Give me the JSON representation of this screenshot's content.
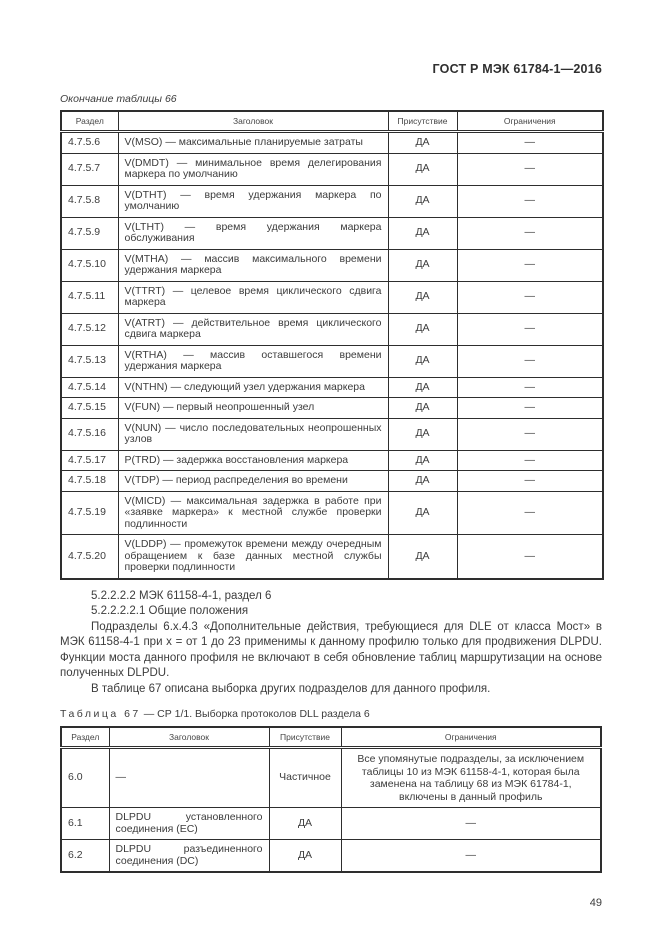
{
  "page": {
    "header": "ГОСТ Р МЭК 61784-1—2016",
    "page_number": "49"
  },
  "table66": {
    "continuation_label": "Окончание таблицы 66",
    "headers": [
      "Раздел",
      "Заголовок",
      "Присутствие",
      "Ограничения"
    ],
    "rows": [
      {
        "section": "4.7.5.6",
        "title": "V(MSO) — максимальные планируемые затраты",
        "presence": "ДА",
        "restrictions": "—"
      },
      {
        "section": "4.7.5.7",
        "title": "V(DMDT) — минимальное время делегирования маркера по умолчанию",
        "presence": "ДА",
        "restrictions": "—"
      },
      {
        "section": "4.7.5.8",
        "title": "V(DTHT) — время удержания маркера по умолчанию",
        "presence": "ДА",
        "restrictions": "—"
      },
      {
        "section": "4.7.5.9",
        "title": "V(LTHT) — время удержания маркера обслуживания",
        "presence": "ДА",
        "restrictions": "—"
      },
      {
        "section": "4.7.5.10",
        "title": "V(MTHA) — массив максимального времени удержания маркера",
        "presence": "ДА",
        "restrictions": "—"
      },
      {
        "section": "4.7.5.11",
        "title": "V(TTRT) — целевое время циклического сдвига маркера",
        "presence": "ДА",
        "restrictions": "—"
      },
      {
        "section": "4.7.5.12",
        "title": "V(ATRT) — действительное время циклического сдвига маркера",
        "presence": "ДА",
        "restrictions": "—"
      },
      {
        "section": "4.7.5.13",
        "title": "V(RTHA) — массив оставшегося времени удержания маркера",
        "presence": "ДА",
        "restrictions": "—"
      },
      {
        "section": "4.7.5.14",
        "title": "V(NTHN) — следующий узел удержания маркера",
        "presence": "ДА",
        "restrictions": "—"
      },
      {
        "section": "4.7.5.15",
        "title": "V(FUN) — первый неопрошенный узел",
        "presence": "ДА",
        "restrictions": "—"
      },
      {
        "section": "4.7.5.16",
        "title": "V(NUN) — число последовательных неопрошенных узлов",
        "presence": "ДА",
        "restrictions": "—"
      },
      {
        "section": "4.7.5.17",
        "title": "P(TRD) — задержка восстановления маркера",
        "presence": "ДА",
        "restrictions": "—"
      },
      {
        "section": "4.7.5.18",
        "title": "V(TDP) — период распределения во времени",
        "presence": "ДА",
        "restrictions": "—"
      },
      {
        "section": "4.7.5.19",
        "title": "V(MICD) — максимальная задержка в работе при «заявке маркера» к местной службе проверки подлинности",
        "presence": "ДА",
        "restrictions": "—"
      },
      {
        "section": "4.7.5.20",
        "title": "V(LDDP) — промежуток времени между очередным обращением к базе данных местной службы проверки подлинности",
        "presence": "ДА",
        "restrictions": "—"
      }
    ]
  },
  "body": {
    "heading1": "5.2.2.2.2 МЭК 61158-4-1, раздел 6",
    "heading2": "5.2.2.2.2.1 Общие положения",
    "paragraph1": "Подразделы 6.x.4.3 «Дополнительные действия, требующиеся для DLE от класса Мост» в МЭК 61158-4-1 при x = от 1 до 23 применимы к данному профилю только для продвижения DLPDU. Функции моста данного профиля не включают в себя обновление таблиц маршрутизации на основе полученных DLPDU.",
    "paragraph2": "В таблице 67 описана выборка других подразделов для данного профиля."
  },
  "table67": {
    "caption_label": "Таблица 67",
    "caption_rest": " — СР 1/1. Выборка протоколов DLL раздела 6",
    "headers": [
      "Раздел",
      "Заголовок",
      "Присутствие",
      "Ограничения"
    ],
    "rows": [
      {
        "section": "6.0",
        "title": "—",
        "presence": "Частичное",
        "restrictions": "Все упомянутые подразделы, за исключением таблицы 10 из МЭК 61158-4-1, которая была заменена на таблицу 68 из МЭК 61784-1, включены в данный профиль"
      },
      {
        "section": "6.1",
        "title": "DLPDU установленного соединения (EC)",
        "presence": "ДА",
        "restrictions": "—"
      },
      {
        "section": "6.2",
        "title": "DLPDU разъединенного соединения (DC)",
        "presence": "ДА",
        "restrictions": "—"
      }
    ]
  }
}
